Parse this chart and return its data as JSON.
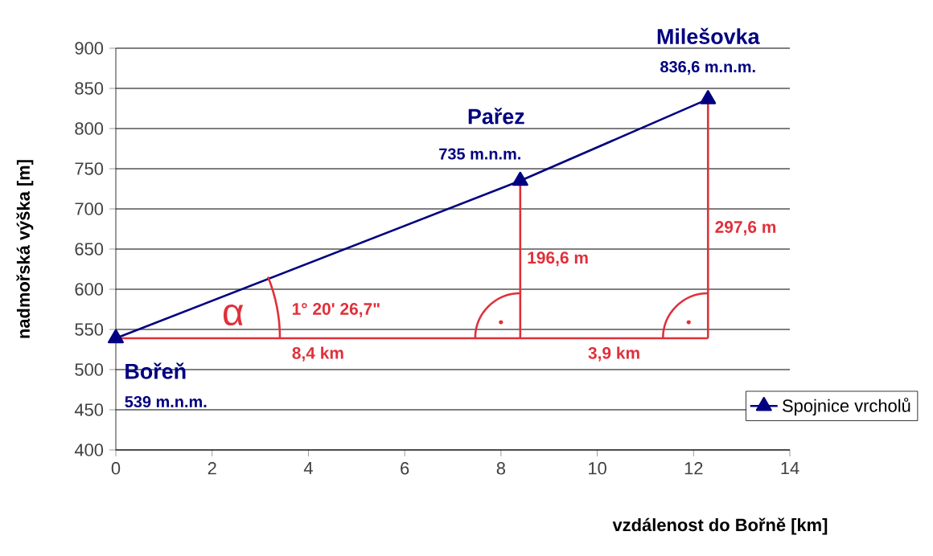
{
  "chart_data": {
    "type": "line",
    "xlabel": "vzdálenost do Bořně [km]",
    "ylabel": "nadmořská výška [m]",
    "series": [
      {
        "name": "Spojnice vrcholů",
        "color": "#000080",
        "x": [
          0,
          8.4,
          12.3
        ],
        "values": [
          539,
          735,
          836.6
        ]
      },
      {
        "color": "#e0303a",
        "x": [
          0,
          12.3
        ],
        "values": [
          539,
          539
        ],
        "marker": "none"
      },
      {
        "color": "#e0303a",
        "x": [
          8.4,
          8.4
        ],
        "values": [
          539,
          735
        ],
        "marker": "none"
      },
      {
        "color": "#e0303a",
        "x": [
          12.3,
          12.3
        ],
        "values": [
          539,
          836.6
        ],
        "marker": "none"
      }
    ],
    "xlim": [
      0,
      14
    ],
    "xticks": [
      0,
      2,
      4,
      6,
      8,
      10,
      12,
      14
    ],
    "ylim": [
      400,
      900
    ],
    "yticks": [
      400,
      450,
      500,
      550,
      600,
      650,
      700,
      750,
      800,
      850,
      900
    ],
    "grid": "y",
    "legend": "bottom right",
    "marker": "triangle",
    "line_style": "solid",
    "annotations": [
      {
        "text": "Milešovka",
        "x": 12.3,
        "y": 836.6
      },
      {
        "text": "836,6 m.n.m.",
        "x": 12.3,
        "y": 836.6
      },
      {
        "text": "Pařez",
        "x": 8.4,
        "y": 735
      },
      {
        "text": "735 m.n.m.",
        "x": 8.4,
        "y": 735
      },
      {
        "text": "Bořeň",
        "x": 0,
        "y": 539
      },
      "539 m.n.m.",
      {
        "text": "8,4 km",
        "x": 4.2,
        "y": 539
      },
      {
        "text": "3,9 km",
        "x": 10.35,
        "y": 539
      },
      {
        "text": "196,6 m",
        "x": 8.4,
        "y": 637.8
      },
      {
        "text": "297,6 m",
        "x": 12.3,
        "y": 688
      },
      "1° 20' 26,7\"",
      "α"
    ]
  }
}
